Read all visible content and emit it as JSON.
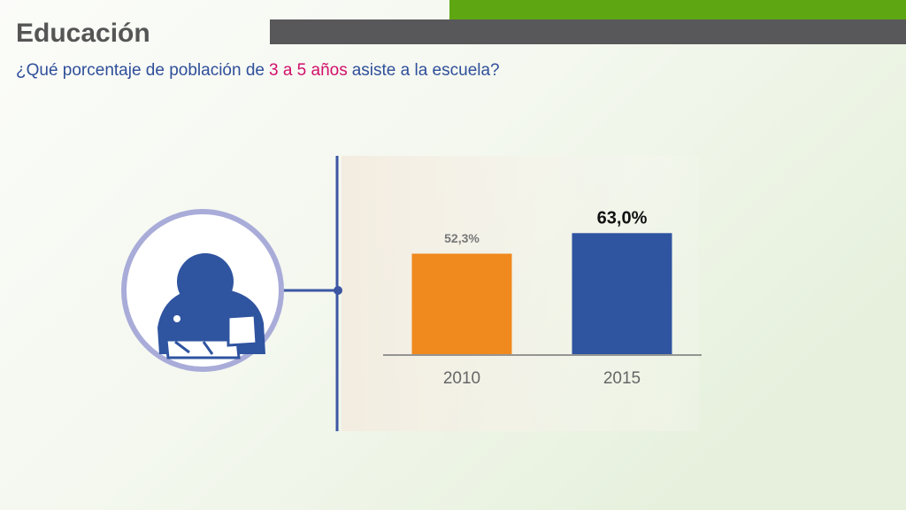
{
  "chart_data": {
    "type": "bar",
    "title": "Educación",
    "subtitle": [
      "¿Qué porcentaje de población de",
      "3 a 5 años",
      "asiste a la escuela?"
    ],
    "categories": [
      "2010",
      "2015"
    ],
    "values": [
      52.3,
      63.0
    ],
    "value_labels": [
      "52,3%",
      "63,0%"
    ],
    "colors": [
      "#f0891e",
      "#2f54a0"
    ]
  }
}
